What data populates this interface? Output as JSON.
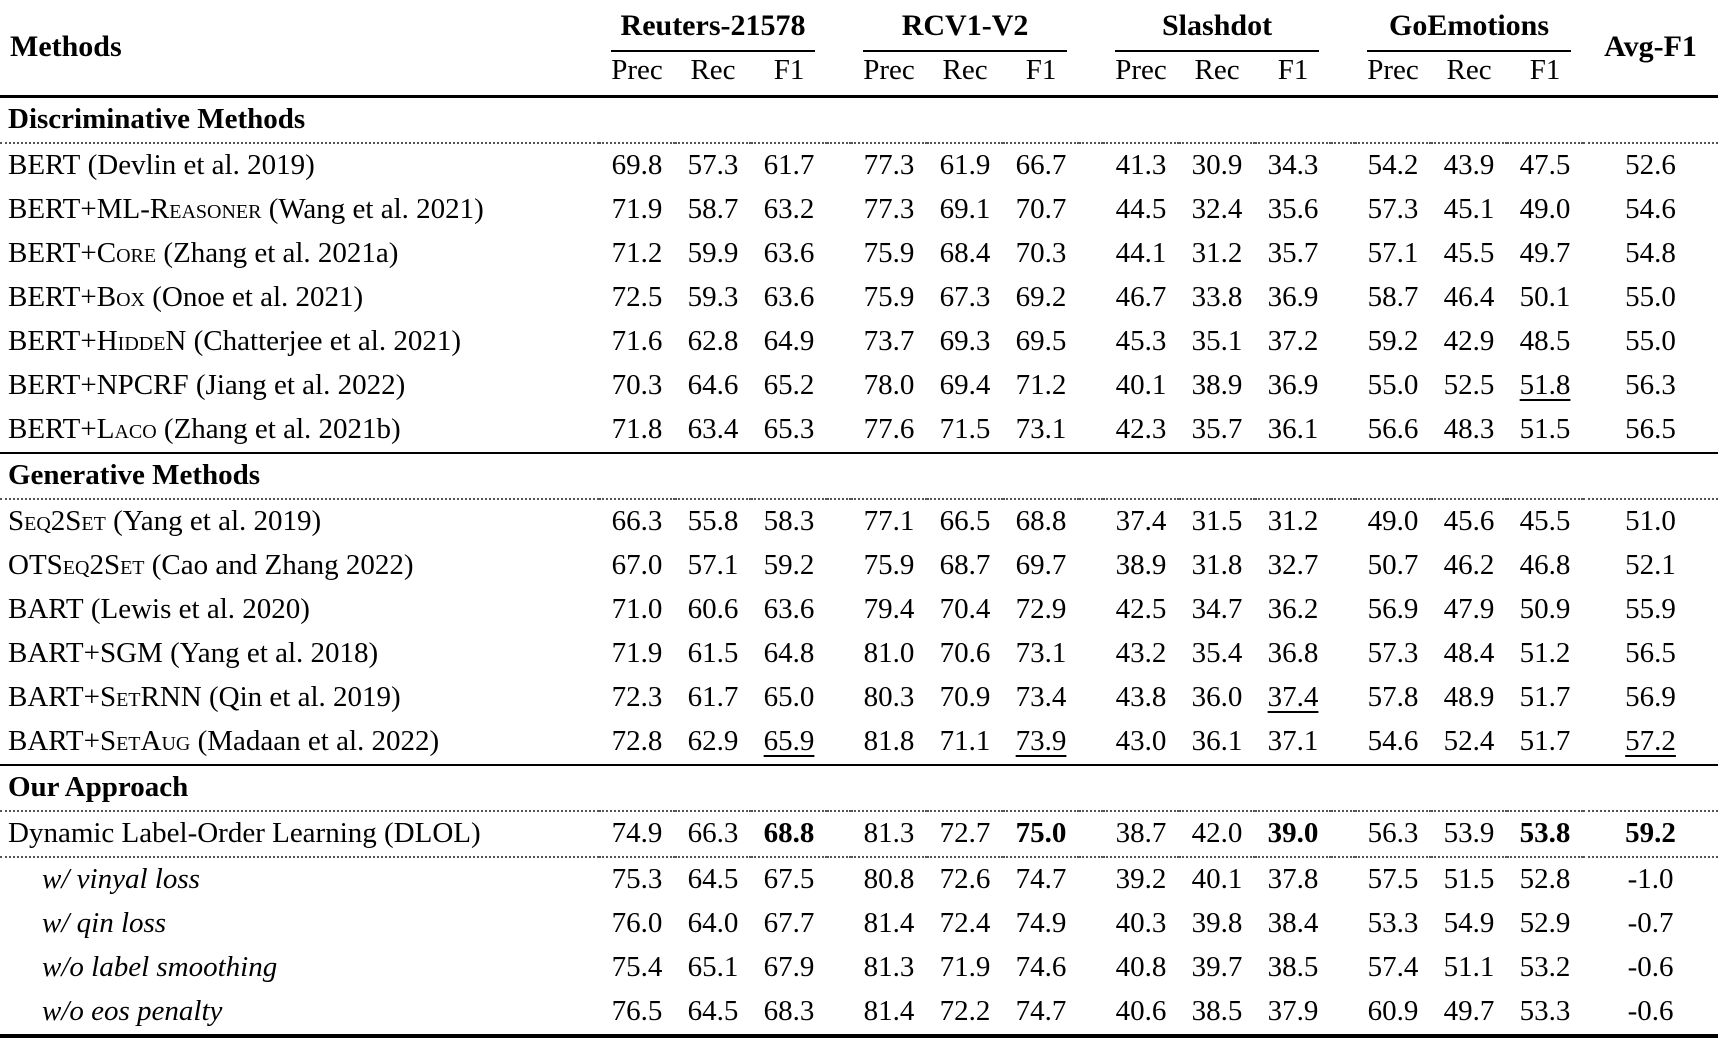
{
  "table": {
    "methods_header": "Methods",
    "avg_header": "Avg-F1",
    "col_groups": [
      {
        "label": "Reuters-21578",
        "subcols": [
          "Prec",
          "Rec",
          "F1"
        ]
      },
      {
        "label": "RCV1-V2",
        "subcols": [
          "Prec",
          "Rec",
          "F1"
        ]
      },
      {
        "label": "Slashdot",
        "subcols": [
          "Prec",
          "Rec",
          "F1"
        ]
      },
      {
        "label": "GoEmotions",
        "subcols": [
          "Prec",
          "Rec",
          "F1"
        ]
      }
    ],
    "sections": [
      {
        "title": "Discriminative Methods",
        "rows": [
          {
            "name": "BERT",
            "cite": "(Devlin et al. 2019)",
            "sc": true,
            "values": [
              "69.8",
              "57.3",
              "61.7",
              "77.3",
              "61.9",
              "66.7",
              "41.3",
              "30.9",
              "34.3",
              "54.2",
              "43.9",
              "47.5",
              "52.6"
            ]
          },
          {
            "name": "BERT+ML-Reasoner",
            "cite": "(Wang et al. 2021)",
            "sc": true,
            "values": [
              "71.9",
              "58.7",
              "63.2",
              "77.3",
              "69.1",
              "70.7",
              "44.5",
              "32.4",
              "35.6",
              "57.3",
              "45.1",
              "49.0",
              "54.6"
            ]
          },
          {
            "name": "BERT+Core",
            "cite": "(Zhang et al. 2021a)",
            "sc": true,
            "values": [
              "71.2",
              "59.9",
              "63.6",
              "75.9",
              "68.4",
              "70.3",
              "44.1",
              "31.2",
              "35.7",
              "57.1",
              "45.5",
              "49.7",
              "54.8"
            ]
          },
          {
            "name": "BERT+Box",
            "cite": "(Onoe et al. 2021)",
            "sc": true,
            "values": [
              "72.5",
              "59.3",
              "63.6",
              "75.9",
              "67.3",
              "69.2",
              "46.7",
              "33.8",
              "36.9",
              "58.7",
              "46.4",
              "50.1",
              "55.0"
            ]
          },
          {
            "name": "BERT+HiddeN",
            "cite": "(Chatterjee et al. 2021)",
            "sc": true,
            "values": [
              "71.6",
              "62.8",
              "64.9",
              "73.7",
              "69.3",
              "69.5",
              "45.3",
              "35.1",
              "37.2",
              "59.2",
              "42.9",
              "48.5",
              "55.0"
            ]
          },
          {
            "name": "BERT+NPCRF",
            "cite": "(Jiang et al. 2022)",
            "sc": true,
            "underline": [
              11
            ],
            "values": [
              "70.3",
              "64.6",
              "65.2",
              "78.0",
              "69.4",
              "71.2",
              "40.1",
              "38.9",
              "36.9",
              "55.0",
              "52.5",
              "51.8",
              "56.3"
            ]
          },
          {
            "name": "BERT+Laco",
            "cite": "(Zhang et al. 2021b)",
            "sc": true,
            "values": [
              "71.8",
              "63.4",
              "65.3",
              "77.6",
              "71.5",
              "73.1",
              "42.3",
              "35.7",
              "36.1",
              "56.6",
              "48.3",
              "51.5",
              "56.5"
            ]
          }
        ]
      },
      {
        "title": "Generative Methods",
        "rows": [
          {
            "name": "Seq2Set",
            "cite": "(Yang et al. 2019)",
            "sc": true,
            "values": [
              "66.3",
              "55.8",
              "58.3",
              "77.1",
              "66.5",
              "68.8",
              "37.4",
              "31.5",
              "31.2",
              "49.0",
              "45.6",
              "45.5",
              "51.0"
            ]
          },
          {
            "name": "OTSeq2Set",
            "cite": "(Cao and Zhang 2022)",
            "sc": true,
            "values": [
              "67.0",
              "57.1",
              "59.2",
              "75.9",
              "68.7",
              "69.7",
              "38.9",
              "31.8",
              "32.7",
              "50.7",
              "46.2",
              "46.8",
              "52.1"
            ]
          },
          {
            "name": "BART",
            "cite": "(Lewis et al. 2020)",
            "sc": true,
            "values": [
              "71.0",
              "60.6",
              "63.6",
              "79.4",
              "70.4",
              "72.9",
              "42.5",
              "34.7",
              "36.2",
              "56.9",
              "47.9",
              "50.9",
              "55.9"
            ]
          },
          {
            "name": "BART+SGM",
            "cite": "(Yang et al. 2018)",
            "sc": true,
            "values": [
              "71.9",
              "61.5",
              "64.8",
              "81.0",
              "70.6",
              "73.1",
              "43.2",
              "35.4",
              "36.8",
              "57.3",
              "48.4",
              "51.2",
              "56.5"
            ]
          },
          {
            "name": "BART+SetRNN",
            "cite": "(Qin et al. 2019)",
            "sc": true,
            "underline": [
              8
            ],
            "values": [
              "72.3",
              "61.7",
              "65.0",
              "80.3",
              "70.9",
              "73.4",
              "43.8",
              "36.0",
              "37.4",
              "57.8",
              "48.9",
              "51.7",
              "56.9"
            ]
          },
          {
            "name": "BART+SetAug",
            "cite": "(Madaan et al. 2022)",
            "sc": true,
            "underline": [
              2,
              5,
              12
            ],
            "values": [
              "72.8",
              "62.9",
              "65.9",
              "81.8",
              "71.1",
              "73.9",
              "43.0",
              "36.1",
              "37.1",
              "54.6",
              "52.4",
              "51.7",
              "57.2"
            ]
          }
        ]
      },
      {
        "title": "Our Approach",
        "rows": [
          {
            "name": "Dynamic Label-Order Learning (DLOL)",
            "cite": "",
            "sc": false,
            "bold": [
              2,
              5,
              8,
              11,
              12
            ],
            "rule_after": "dotted",
            "values": [
              "74.9",
              "66.3",
              "68.8",
              "81.3",
              "72.7",
              "75.0",
              "38.7",
              "42.0",
              "39.0",
              "56.3",
              "53.9",
              "53.8",
              "59.2"
            ]
          },
          {
            "name": "w/ vinyal loss",
            "cite": "",
            "sc": false,
            "italic": true,
            "indent": true,
            "values": [
              "75.3",
              "64.5",
              "67.5",
              "80.8",
              "72.6",
              "74.7",
              "39.2",
              "40.1",
              "37.8",
              "57.5",
              "51.5",
              "52.8",
              "-1.0"
            ]
          },
          {
            "name": "w/ qin loss",
            "cite": "",
            "sc": false,
            "italic": true,
            "indent": true,
            "values": [
              "76.0",
              "64.0",
              "67.7",
              "81.4",
              "72.4",
              "74.9",
              "40.3",
              "39.8",
              "38.4",
              "53.3",
              "54.9",
              "52.9",
              "-0.7"
            ]
          },
          {
            "name": "w/o label smoothing",
            "cite": "",
            "sc": false,
            "italic": true,
            "indent": true,
            "values": [
              "75.4",
              "65.1",
              "67.9",
              "81.3",
              "71.9",
              "74.6",
              "40.8",
              "39.7",
              "38.5",
              "57.4",
              "51.1",
              "53.2",
              "-0.6"
            ]
          },
          {
            "name": "w/o eos penalty",
            "cite": "",
            "sc": false,
            "italic": true,
            "indent": true,
            "values": [
              "76.5",
              "64.5",
              "68.3",
              "81.4",
              "72.2",
              "74.7",
              "40.6",
              "38.5",
              "37.9",
              "60.9",
              "49.7",
              "53.3",
              "-0.6"
            ]
          }
        ]
      }
    ]
  }
}
